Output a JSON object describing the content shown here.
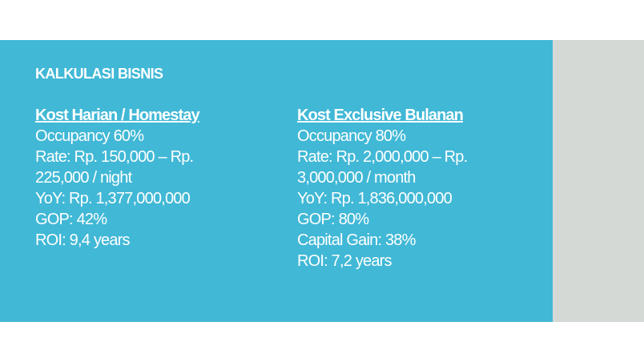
{
  "slide": {
    "title": "KALKULASI BISNIS",
    "background_color": "#41b8d6",
    "side_panel_color": "#d4d9d6",
    "columns": [
      {
        "heading": "Kost Harian / Homestay",
        "lines": [
          "Occupancy 60%",
          "Rate: Rp. 150,000 –  Rp.",
          "225,000 / night",
          "YoY: Rp. 1,377,000,000",
          "GOP: 42%",
          "ROI: 9,4 years"
        ]
      },
      {
        "heading": "Kost Exclusive Bulanan",
        "lines": [
          "Occupancy 80%",
          "Rate: Rp. 2,000,000 – Rp.",
          "3,000,000 / month",
          "YoY: Rp. 1,836,000,000",
          "GOP: 80%",
          "Capital Gain: 38%",
          "ROI: 7,2 years"
        ]
      }
    ]
  }
}
